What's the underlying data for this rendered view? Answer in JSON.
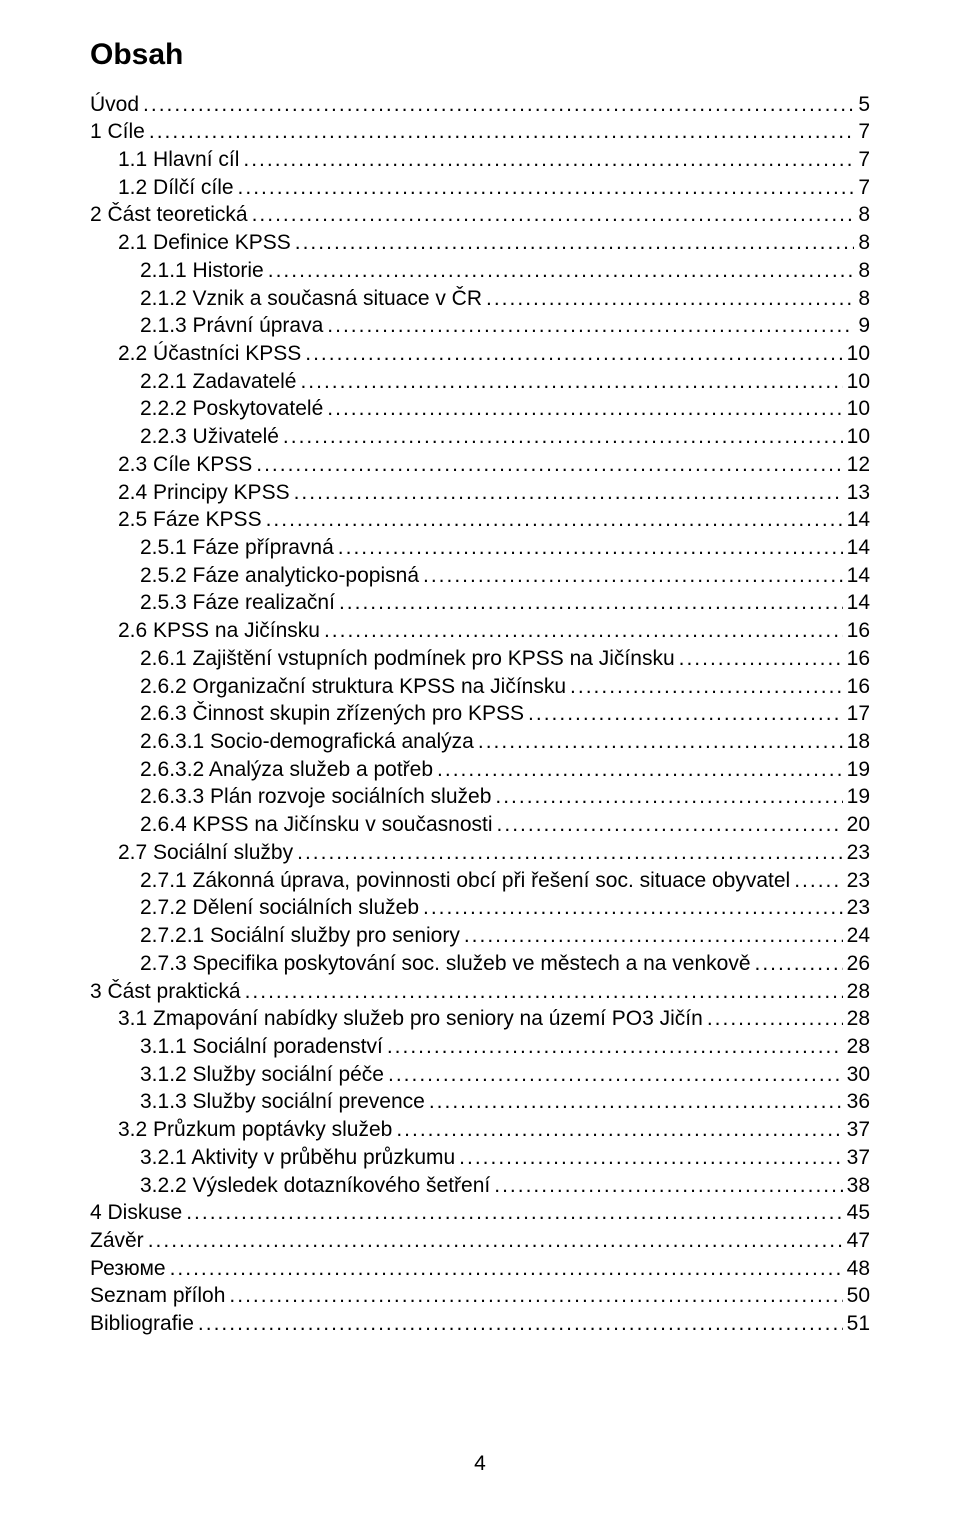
{
  "title": "Obsah",
  "pageNumber": "4",
  "entries": [
    {
      "label": "Úvod",
      "page": "5",
      "indent": 0
    },
    {
      "label": "1 Cíle",
      "page": "7",
      "indent": 0
    },
    {
      "label": "1.1 Hlavní cíl",
      "page": "7",
      "indent": 1
    },
    {
      "label": "1.2 Dílčí cíle",
      "page": "7",
      "indent": 1
    },
    {
      "label": "2 Část teoretická",
      "page": "8",
      "indent": 0
    },
    {
      "label": "2.1 Definice KPSS",
      "page": "8",
      "indent": 1
    },
    {
      "label": "2.1.1 Historie",
      "page": "8",
      "indent": 2
    },
    {
      "label": "2.1.2 Vznik a současná situace v ČR",
      "page": "8",
      "indent": 2
    },
    {
      "label": "2.1.3 Právní úprava",
      "page": "9",
      "indent": 2
    },
    {
      "label": "2.2 Účastníci KPSS",
      "page": "10",
      "indent": 1
    },
    {
      "label": "2.2.1   Zadavatelé",
      "page": "10",
      "indent": 2
    },
    {
      "label": "2.2.2   Poskytovatelé",
      "page": "10",
      "indent": 2
    },
    {
      "label": "2.2.3   Uživatelé",
      "page": "10",
      "indent": 2
    },
    {
      "label": "2.3 Cíle KPSS",
      "page": "12",
      "indent": 1
    },
    {
      "label": "2.4 Principy KPSS",
      "page": "13",
      "indent": 1
    },
    {
      "label": "2.5 Fáze KPSS",
      "page": "14",
      "indent": 1
    },
    {
      "label": "2.5.1 Fáze přípravná",
      "page": "14",
      "indent": 2
    },
    {
      "label": "2.5.2 Fáze analyticko-popisná",
      "page": "14",
      "indent": 2
    },
    {
      "label": "2.5.3 Fáze realizační",
      "page": "14",
      "indent": 2
    },
    {
      "label": "2.6 KPSS na Jičínsku",
      "page": "16",
      "indent": 1
    },
    {
      "label": "2.6.1   Zajištění vstupních podmínek pro KPSS na  Jičínsku",
      "page": "16",
      "indent": 2
    },
    {
      "label": "2.6.2   Organizační struktura KPSS na Jičínsku",
      "page": "16",
      "indent": 2
    },
    {
      "label": "2.6.3   Činnost skupin zřízených pro KPSS",
      "page": "17",
      "indent": 2
    },
    {
      "label": "2.6.3.1 Socio-demografická analýza",
      "page": "18",
      "indent": 2
    },
    {
      "label": "2.6.3.2 Analýza služeb a potřeb",
      "page": "19",
      "indent": 2
    },
    {
      "label": "2.6.3.3 Plán rozvoje sociálních služeb",
      "page": "19",
      "indent": 2
    },
    {
      "label": "2.6.4 KPSS na Jičínsku v současnosti",
      "page": "20",
      "indent": 2
    },
    {
      "label": "2.7 Sociální služby",
      "page": "23",
      "indent": 1
    },
    {
      "label": "2.7.1 Zákonná úprava, povinnosti obcí při řešení soc. situace obyvatel",
      "page": "23",
      "indent": 2
    },
    {
      "label": "2.7.2 Dělení sociálních služeb",
      "page": "23",
      "indent": 2
    },
    {
      "label": "2.7.2.1 Sociální služby pro seniory",
      "page": "24",
      "indent": 2
    },
    {
      "label": "2.7.3 Specifika poskytování soc. služeb ve městech  a na venkově",
      "page": "26",
      "indent": 2
    },
    {
      "label": "3 Část praktická",
      "page": "28",
      "indent": 0
    },
    {
      "label": "3.1 Zmapování nabídky služeb pro seniory na území PO3 Jičín",
      "page": "28",
      "indent": 1
    },
    {
      "label": "3.1.1   Sociální poradenství",
      "page": "28",
      "indent": 2
    },
    {
      "label": "3.1.2   Služby sociální péče",
      "page": "30",
      "indent": 2
    },
    {
      "label": "3.1.3   Služby sociální prevence",
      "page": "36",
      "indent": 2
    },
    {
      "label": "3.2 Průzkum poptávky služeb",
      "page": "37",
      "indent": 1
    },
    {
      "label": "3.2.1 Aktivity v průběhu průzkumu",
      "page": "37",
      "indent": 2
    },
    {
      "label": "3.2.2 Výsledek dotazníkového šetření",
      "page": "38",
      "indent": 2
    },
    {
      "label": "4 Diskuse",
      "page": "45",
      "indent": 0
    },
    {
      "label": "Závěr",
      "page": "47",
      "indent": 0
    },
    {
      "label": "Резюме",
      "page": "48",
      "indent": 0
    },
    {
      "label": "Seznam příloh",
      "page": "50",
      "indent": 0
    },
    {
      "label": "Bibliografie",
      "page": "51",
      "indent": 0
    }
  ]
}
